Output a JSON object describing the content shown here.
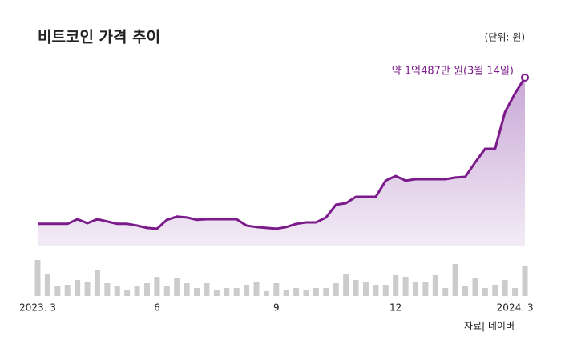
{
  "chart_data": {
    "type": "area-line",
    "title": "비트코인 가격 추이",
    "unit_label": "(단위: 원)",
    "annotation": "약 1억487만 원(3월 14일)",
    "source": "자료| 네이버",
    "categories": [
      "2023. 3",
      null,
      null,
      null,
      null,
      null,
      null,
      null,
      null,
      null,
      null,
      null,
      "6",
      null,
      null,
      null,
      null,
      null,
      null,
      null,
      null,
      null,
      null,
      null,
      "9",
      null,
      null,
      null,
      null,
      null,
      null,
      null,
      null,
      null,
      null,
      null,
      "12",
      null,
      null,
      null,
      null,
      null,
      null,
      null,
      null,
      null,
      null,
      null,
      "2024. 3",
      null
    ],
    "series": [
      {
        "name": "비트코인 가격",
        "color": "#7b1a8a",
        "values": [
          3610,
          3610,
          3610,
          3610,
          3830,
          3640,
          3830,
          3720,
          3610,
          3610,
          3530,
          3420,
          3380,
          3800,
          3950,
          3910,
          3800,
          3830,
          3830,
          3830,
          3830,
          3530,
          3460,
          3420,
          3380,
          3460,
          3610,
          3680,
          3680,
          3910,
          4510,
          4580,
          4880,
          4880,
          4880,
          5640,
          5860,
          5640,
          5710,
          5710,
          5710,
          5710,
          5790,
          5820,
          6500,
          7140,
          7140,
          8870,
          9740,
          10487
        ]
      }
    ],
    "ylim": [
      2550,
      11500
    ],
    "volume": {
      "color": "#cccccc",
      "ylim": [
        0,
        45
      ],
      "values": [
        45,
        28,
        12,
        14,
        20,
        18,
        33,
        16,
        12,
        8,
        12,
        16,
        24,
        12,
        22,
        16,
        10,
        16,
        8,
        10,
        10,
        14,
        18,
        6,
        16,
        8,
        10,
        8,
        10,
        10,
        16,
        28,
        20,
        18,
        14,
        14,
        26,
        24,
        18,
        18,
        26,
        10,
        40,
        12,
        22,
        10,
        14,
        20,
        10,
        38
      ]
    }
  }
}
